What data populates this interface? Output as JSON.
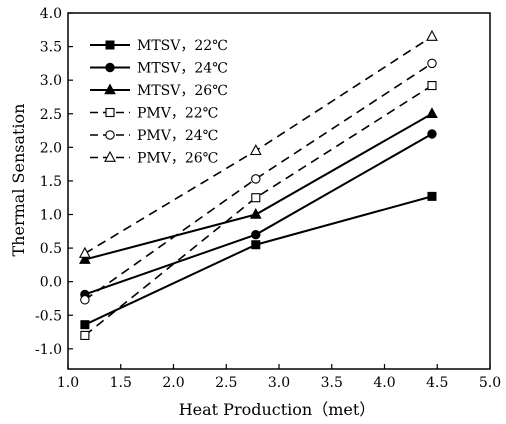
{
  "chart_data": {
    "type": "line",
    "xlabel": "Heat Production（met）",
    "ylabel": "Thermal Sensation",
    "xlim": [
      1.0,
      5.0
    ],
    "ylim": [
      -1.3,
      4.0
    ],
    "xticks": [
      "1.0",
      "1.5",
      "2.0",
      "2.5",
      "3.0",
      "3.5",
      "4.0",
      "4.5",
      "5.0"
    ],
    "yticks": [
      "-1.0",
      "-0.5",
      "0.0",
      "0.5",
      "1.0",
      "1.5",
      "2.0",
      "2.5",
      "3.0",
      "3.5",
      "4.0"
    ],
    "legend_position": "top-left",
    "x": [
      1.16,
      2.78,
      4.45
    ],
    "series": [
      {
        "name": "MTSV，22℃",
        "values": [
          -0.64,
          0.55,
          1.27
        ],
        "line": "solid",
        "marker": "square",
        "filled": true
      },
      {
        "name": "MTSV，24℃",
        "values": [
          -0.19,
          0.7,
          2.2
        ],
        "line": "solid",
        "marker": "circle",
        "filled": true
      },
      {
        "name": "MTSV，26℃",
        "values": [
          0.33,
          1.0,
          2.5
        ],
        "line": "solid",
        "marker": "triangle",
        "filled": true
      },
      {
        "name": "PMV，22℃",
        "values": [
          -0.8,
          1.25,
          2.92
        ],
        "line": "dashed",
        "marker": "square",
        "filled": false
      },
      {
        "name": "PMV，24℃",
        "values": [
          -0.27,
          1.53,
          3.25
        ],
        "line": "dashed",
        "marker": "circle",
        "filled": false
      },
      {
        "name": "PMV，26℃",
        "values": [
          0.42,
          1.95,
          3.65
        ],
        "line": "dashed",
        "marker": "triangle",
        "filled": false
      }
    ]
  }
}
